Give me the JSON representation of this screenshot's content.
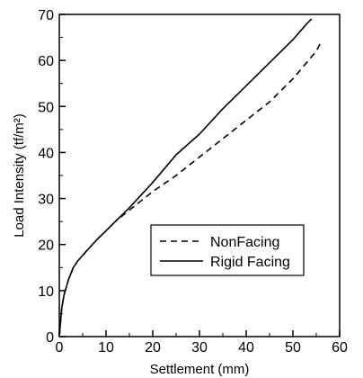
{
  "chart_data": {
    "type": "line",
    "xlabel": "Settlement (mm)",
    "ylabel": "Load Intensity (tf/m²)",
    "xlim": [
      0,
      60
    ],
    "ylim": [
      0,
      70
    ],
    "x_ticks": [
      0,
      10,
      20,
      30,
      40,
      50,
      60
    ],
    "y_ticks": [
      0,
      10,
      20,
      30,
      40,
      50,
      60,
      70
    ],
    "x_tick_labels": [
      "0",
      "10",
      "20",
      "30",
      "40",
      "50",
      "60"
    ],
    "y_tick_labels": [
      "0",
      "10",
      "20",
      "30",
      "40",
      "50",
      "60",
      "70"
    ],
    "grid": false,
    "legend_position": "lower-right",
    "series": [
      {
        "name": "NonFacing",
        "line_style": "dashed",
        "color": "#000000",
        "x": [
          0,
          0.5,
          1,
          2,
          3,
          4,
          6,
          8,
          10,
          12,
          15,
          20,
          25,
          30,
          35,
          40,
          45,
          50,
          55,
          56
        ],
        "y": [
          0,
          6,
          9,
          12.5,
          15,
          16.5,
          18.8,
          21,
          23,
          25,
          27.5,
          31.5,
          35,
          39,
          43,
          47,
          51,
          56,
          62,
          64
        ]
      },
      {
        "name": "Rigid Facing",
        "line_style": "solid",
        "color": "#000000",
        "x": [
          0,
          0.5,
          1,
          2,
          3,
          4,
          6,
          8,
          10,
          12,
          15,
          20,
          25,
          30,
          35,
          40,
          45,
          50,
          53,
          54
        ],
        "y": [
          0,
          6,
          9,
          12.5,
          15,
          16.5,
          18.8,
          21,
          23,
          25,
          28,
          33.5,
          39.5,
          44,
          49.5,
          54.5,
          59.5,
          64.5,
          68,
          69
        ]
      }
    ]
  }
}
